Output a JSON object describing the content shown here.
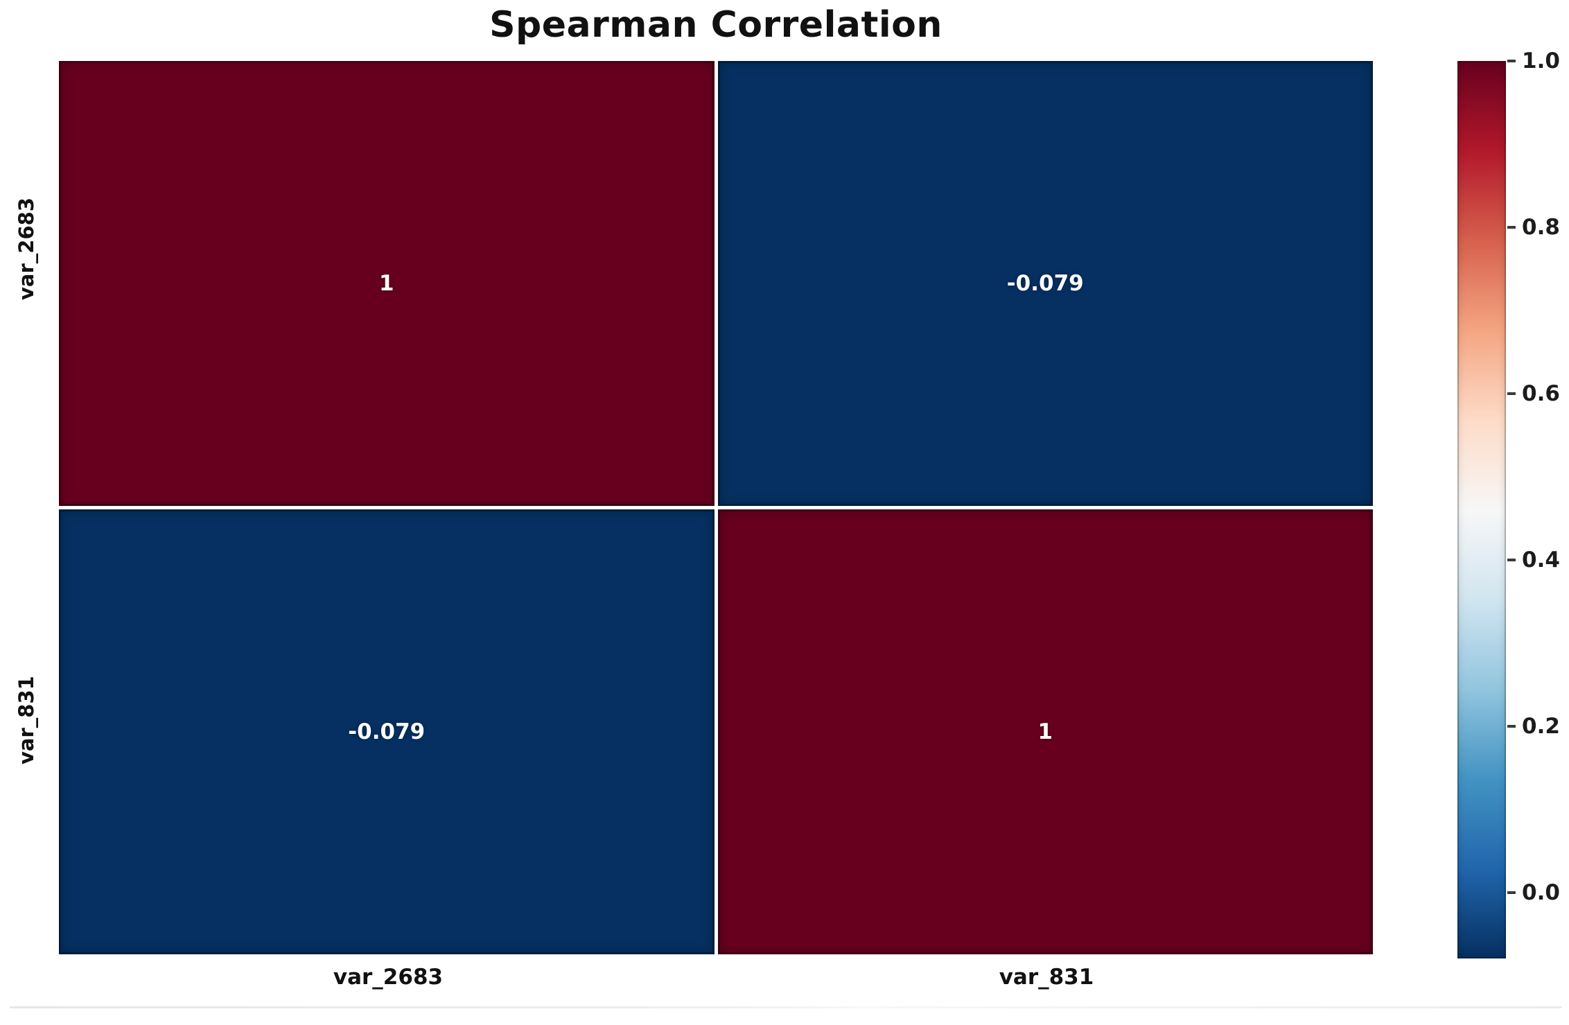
{
  "chart_data": {
    "type": "heatmap",
    "title": "Spearman Correlation",
    "x_labels": [
      "var_2683",
      "var_831"
    ],
    "y_labels": [
      "var_2683",
      "var_831"
    ],
    "matrix": [
      [
        1,
        -0.079
      ],
      [
        -0.079,
        1
      ]
    ],
    "cell_labels": [
      [
        "1",
        "-0.079"
      ],
      [
        "-0.079",
        "1"
      ]
    ],
    "cell_colors": [
      [
        "#67001f",
        "#053061"
      ],
      [
        "#053061",
        "#67001f"
      ]
    ],
    "annotation_text_color": "#ffffff",
    "cell_divider_color": "#ffffff",
    "colormap": {
      "name": "RdBu_r",
      "stops_top_to_bottom": [
        "#67001f",
        "#b2182b",
        "#d6604d",
        "#f4a582",
        "#fddbc7",
        "#f7f7f7",
        "#d1e5f0",
        "#92c5de",
        "#4393c3",
        "#2166ac",
        "#053061"
      ]
    },
    "colorbar": {
      "position": "right",
      "vmin": -0.079,
      "vmax": 1.0,
      "tick_labels": [
        "1.0",
        "0.8",
        "0.6",
        "0.4",
        "0.2",
        "0.0"
      ],
      "tick_values": [
        1.0,
        0.8,
        0.6,
        0.4,
        0.2,
        0.0
      ]
    },
    "grid": false,
    "title_color": "#111111",
    "axis_label_color": "#111111"
  }
}
